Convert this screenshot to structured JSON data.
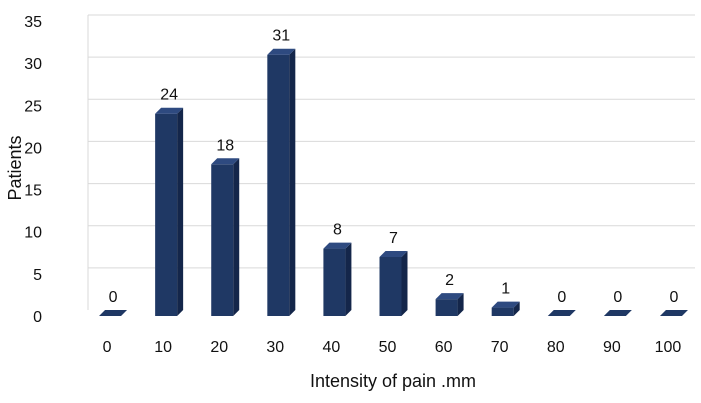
{
  "chart_data": {
    "type": "bar",
    "title": "",
    "xlabel": "Intensity of pain .mm",
    "ylabel": "Patients",
    "categories": [
      "0",
      "10",
      "20",
      "30",
      "40",
      "50",
      "60",
      "70",
      "80",
      "90",
      "100"
    ],
    "values": [
      0,
      24,
      18,
      31,
      8,
      7,
      2,
      1,
      0,
      0,
      0
    ],
    "ylim": [
      0,
      35
    ],
    "yticks": [
      0,
      5,
      10,
      15,
      20,
      25,
      30,
      35
    ],
    "grid": true,
    "legend": "none",
    "style": "3d-column",
    "colors": {
      "bar_front": "#1f3864",
      "bar_side": "#14264a",
      "bar_top": "#2e4a80",
      "grid": "#d9d9d9",
      "text": "#111111"
    }
  }
}
